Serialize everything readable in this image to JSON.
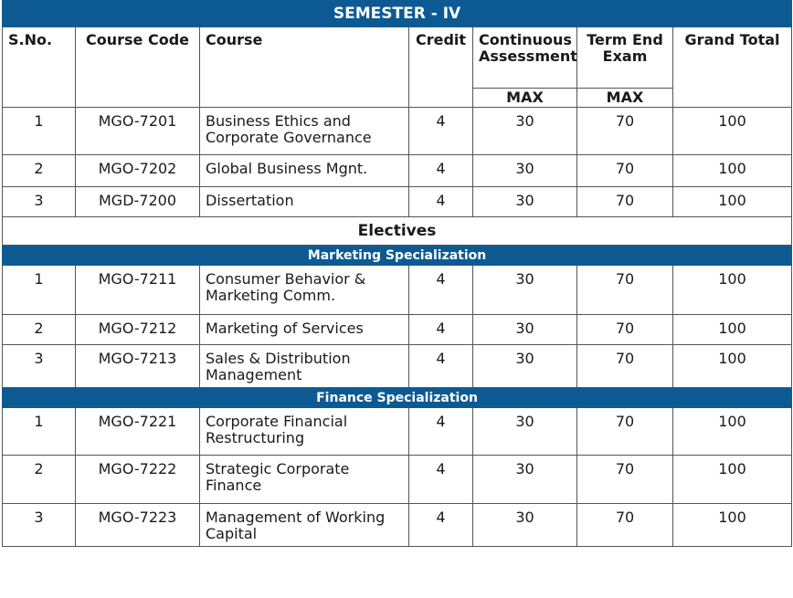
{
  "title": "SEMESTER - IV",
  "headers": {
    "sno": "S.No.",
    "code": "Course Code",
    "course": "Course",
    "credit": "Credit",
    "ca": "Continuous Assessment",
    "te": "Term End Exam",
    "total": "Grand Total",
    "ca_max": "MAX",
    "te_max": "MAX"
  },
  "core": [
    {
      "sno": "1",
      "code": "MGO-7201",
      "course": "Business Ethics and Corporate Governance",
      "credit": "4",
      "ca": "30",
      "te": "70",
      "total": "100"
    },
    {
      "sno": "2",
      "code": "MGO-7202",
      "course": "Global Business Mgnt.",
      "credit": "4",
      "ca": "30",
      "te": "70",
      "total": "100"
    },
    {
      "sno": "3",
      "code": "MGD-7200",
      "course": "Dissertation",
      "credit": "4",
      "ca": "30",
      "te": "70",
      "total": "100"
    }
  ],
  "electives_label": "Electives",
  "marketing": {
    "label": "Marketing Specialization",
    "rows": [
      {
        "sno": "1",
        "code": "MGO-7211",
        "course": "Consumer Behavior & Marketing Comm.",
        "credit": "4",
        "ca": "30",
        "te": "70",
        "total": "100"
      },
      {
        "sno": "2",
        "code": "MGO-7212",
        "course": "Marketing of Services",
        "credit": "4",
        "ca": "30",
        "te": "70",
        "total": "100"
      },
      {
        "sno": "3",
        "code": "MGO-7213",
        "course": "Sales & Distribution Management",
        "credit": "4",
        "ca": "30",
        "te": "70",
        "total": "100"
      }
    ]
  },
  "finance": {
    "label": "Finance Specialization",
    "rows": [
      {
        "sno": "1",
        "code": "MGO-7221",
        "course": "Corporate Financial Restructuring",
        "credit": "4",
        "ca": "30",
        "te": "70",
        "total": "100"
      },
      {
        "sno": "2",
        "code": "MGO-7222",
        "course": "Strategic Corporate Finance",
        "credit": "4",
        "ca": "30",
        "te": "70",
        "total": "100"
      },
      {
        "sno": "3",
        "code": "MGO-7223",
        "course": "Management of Working Capital",
        "credit": "4",
        "ca": "30",
        "te": "70",
        "total": "100"
      }
    ]
  }
}
